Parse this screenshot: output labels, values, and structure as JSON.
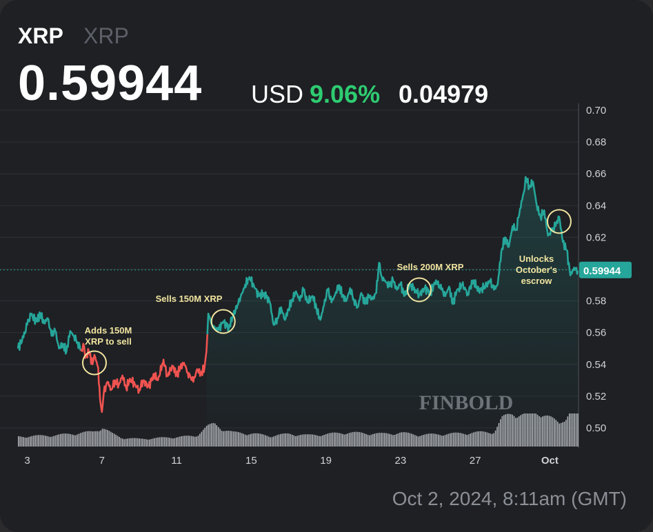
{
  "header": {
    "symbol": "XRP",
    "symbol_secondary": "XRP",
    "price": "0.59944",
    "currency": "USD",
    "change_pct": "9.06%",
    "change_abs": "0.04979"
  },
  "timestamp": "Oct 2, 2024, 8:11am (GMT)",
  "watermark": "FINBOLD",
  "last_price_label": "0.59944",
  "colors": {
    "up": "#26a69a",
    "down": "#ef5350",
    "pct_green": "#2ecc71",
    "background": "#1e2024",
    "annotation": "#f2e5a0"
  },
  "chart_data": {
    "type": "line",
    "ylim": [
      0.49,
      0.7
    ],
    "y_ticks": [
      "0.70",
      "0.68",
      "0.66",
      "0.64",
      "0.62",
      "0.60",
      "0.58",
      "0.56",
      "0.54",
      "0.52",
      "0.50"
    ],
    "x_ticks": [
      "3",
      "7",
      "11",
      "15",
      "19",
      "23",
      "27",
      "Oct"
    ],
    "x_tick_days": [
      3,
      7,
      11,
      15,
      19,
      23,
      27,
      31
    ],
    "xlim": [
      2.5,
      32.5
    ],
    "grid": true,
    "series": [
      {
        "points": [
          [
            2.5,
            0.55
          ],
          [
            2.8,
            0.557
          ],
          [
            3.0,
            0.565
          ],
          [
            3.2,
            0.571
          ],
          [
            3.5,
            0.567
          ],
          [
            3.7,
            0.572
          ],
          [
            3.9,
            0.566
          ],
          [
            4.1,
            0.569
          ],
          [
            4.3,
            0.558
          ],
          [
            4.5,
            0.561
          ],
          [
            4.7,
            0.55
          ],
          [
            4.9,
            0.553
          ],
          [
            5.1,
            0.548
          ],
          [
            5.3,
            0.561
          ],
          [
            5.5,
            0.558
          ],
          [
            5.7,
            0.554
          ],
          [
            5.9,
            0.549
          ],
          [
            6.0,
            0.553
          ],
          [
            6.1,
            0.544
          ],
          [
            6.3,
            0.548
          ],
          [
            6.5,
            0.54
          ],
          [
            6.6,
            0.546
          ],
          [
            6.8,
            0.538
          ],
          [
            6.9,
            0.518
          ],
          [
            7.0,
            0.51
          ],
          [
            7.1,
            0.522
          ],
          [
            7.3,
            0.529
          ],
          [
            7.5,
            0.524
          ],
          [
            7.7,
            0.53
          ],
          [
            7.9,
            0.527
          ],
          [
            8.1,
            0.533
          ],
          [
            8.3,
            0.525
          ],
          [
            8.5,
            0.531
          ],
          [
            8.8,
            0.527
          ],
          [
            9.0,
            0.524
          ],
          [
            9.2,
            0.53
          ],
          [
            9.5,
            0.526
          ],
          [
            9.8,
            0.534
          ],
          [
            10.0,
            0.53
          ],
          [
            10.3,
            0.543
          ],
          [
            10.5,
            0.533
          ],
          [
            10.8,
            0.539
          ],
          [
            11.0,
            0.533
          ],
          [
            11.2,
            0.538
          ],
          [
            11.4,
            0.541
          ],
          [
            11.6,
            0.535
          ],
          [
            11.9,
            0.529
          ],
          [
            12.1,
            0.537
          ],
          [
            12.3,
            0.534
          ],
          [
            12.5,
            0.538
          ],
          [
            12.6,
            0.548
          ],
          [
            12.7,
            0.572
          ],
          [
            12.9,
            0.565
          ],
          [
            13.2,
            0.561
          ],
          [
            13.5,
            0.567
          ],
          [
            13.8,
            0.563
          ],
          [
            14.0,
            0.57
          ],
          [
            14.3,
            0.578
          ],
          [
            14.6,
            0.588
          ],
          [
            14.9,
            0.595
          ],
          [
            15.1,
            0.591
          ],
          [
            15.4,
            0.583
          ],
          [
            15.7,
            0.585
          ],
          [
            16.0,
            0.579
          ],
          [
            16.2,
            0.565
          ],
          [
            16.4,
            0.569
          ],
          [
            16.6,
            0.576
          ],
          [
            16.8,
            0.568
          ],
          [
            17.0,
            0.575
          ],
          [
            17.2,
            0.581
          ],
          [
            17.4,
            0.586
          ],
          [
            17.6,
            0.58
          ],
          [
            17.8,
            0.587
          ],
          [
            18.0,
            0.579
          ],
          [
            18.3,
            0.583
          ],
          [
            18.5,
            0.575
          ],
          [
            18.7,
            0.568
          ],
          [
            18.9,
            0.577
          ],
          [
            19.1,
            0.587
          ],
          [
            19.3,
            0.579
          ],
          [
            19.5,
            0.584
          ],
          [
            19.7,
            0.59
          ],
          [
            19.9,
            0.583
          ],
          [
            20.1,
            0.58
          ],
          [
            20.3,
            0.588
          ],
          [
            20.5,
            0.581
          ],
          [
            20.7,
            0.576
          ],
          [
            20.9,
            0.585
          ],
          [
            21.1,
            0.578
          ],
          [
            21.3,
            0.583
          ],
          [
            21.5,
            0.581
          ],
          [
            21.7,
            0.585
          ],
          [
            21.85,
            0.604
          ],
          [
            22.0,
            0.595
          ],
          [
            22.2,
            0.592
          ],
          [
            22.4,
            0.589
          ],
          [
            22.6,
            0.593
          ],
          [
            22.8,
            0.587
          ],
          [
            23.0,
            0.591
          ],
          [
            23.2,
            0.583
          ],
          [
            23.5,
            0.59
          ],
          [
            23.8,
            0.587
          ],
          [
            24.0,
            0.584
          ],
          [
            24.3,
            0.588
          ],
          [
            24.6,
            0.585
          ],
          [
            24.9,
            0.593
          ],
          [
            25.2,
            0.587
          ],
          [
            25.4,
            0.583
          ],
          [
            25.6,
            0.589
          ],
          [
            25.8,
            0.578
          ],
          [
            26.0,
            0.586
          ],
          [
            26.3,
            0.59
          ],
          [
            26.6,
            0.585
          ],
          [
            26.9,
            0.593
          ],
          [
            27.2,
            0.586
          ],
          [
            27.5,
            0.589
          ],
          [
            27.8,
            0.592
          ],
          [
            28.0,
            0.587
          ],
          [
            28.2,
            0.59
          ],
          [
            28.4,
            0.611
          ],
          [
            28.6,
            0.62
          ],
          [
            28.8,
            0.614
          ],
          [
            29.0,
            0.627
          ],
          [
            29.2,
            0.625
          ],
          [
            29.4,
            0.638
          ],
          [
            29.6,
            0.648
          ],
          [
            29.7,
            0.658
          ],
          [
            29.9,
            0.652
          ],
          [
            30.1,
            0.655
          ],
          [
            30.3,
            0.64
          ],
          [
            30.5,
            0.633
          ],
          [
            30.7,
            0.637
          ],
          [
            30.9,
            0.621
          ],
          [
            31.1,
            0.624
          ],
          [
            31.3,
            0.627
          ],
          [
            31.5,
            0.633
          ],
          [
            31.7,
            0.617
          ],
          [
            31.9,
            0.612
          ],
          [
            32.1,
            0.596
          ],
          [
            32.3,
            0.601
          ],
          [
            32.5,
            0.599
          ]
        ]
      }
    ],
    "volume": {
      "ylim": [
        0,
        1
      ],
      "points": [
        [
          2.5,
          0.29
        ],
        [
          3.5,
          0.31
        ],
        [
          4.5,
          0.33
        ],
        [
          5.5,
          0.38
        ],
        [
          6.5,
          0.43
        ],
        [
          7.0,
          0.56
        ],
        [
          7.5,
          0.38
        ],
        [
          8.0,
          0.26
        ],
        [
          9.0,
          0.22
        ],
        [
          10.0,
          0.25
        ],
        [
          11.0,
          0.28
        ],
        [
          12.0,
          0.31
        ],
        [
          12.6,
          0.58
        ],
        [
          13.0,
          0.66
        ],
        [
          13.5,
          0.5
        ],
        [
          14.0,
          0.41
        ],
        [
          15.0,
          0.38
        ],
        [
          16.0,
          0.31
        ],
        [
          17.0,
          0.37
        ],
        [
          18.0,
          0.33
        ],
        [
          19.0,
          0.36
        ],
        [
          20.0,
          0.41
        ],
        [
          21.0,
          0.39
        ],
        [
          22.0,
          0.37
        ],
        [
          23.0,
          0.4
        ],
        [
          24.0,
          0.34
        ],
        [
          25.0,
          0.36
        ],
        [
          26.0,
          0.38
        ],
        [
          27.0,
          0.41
        ],
        [
          28.0,
          0.43
        ],
        [
          28.4,
          0.82
        ],
        [
          29.0,
          0.98
        ],
        [
          29.5,
          0.93
        ],
        [
          30.0,
          0.96
        ],
        [
          30.5,
          1.0
        ],
        [
          31.0,
          0.83
        ],
        [
          31.5,
          0.66
        ],
        [
          32.0,
          1.0
        ],
        [
          32.5,
          0.97
        ]
      ]
    },
    "annotations": [
      {
        "text": [
          "Adds 150M",
          "XRP to sell"
        ],
        "x": 6.6,
        "y": 0.541
      },
      {
        "text": [
          "Sells 150M XRP"
        ],
        "x": 13.5,
        "y": 0.567
      },
      {
        "text": [
          "Sells 200M XRP"
        ],
        "x": 24.0,
        "y": 0.587
      },
      {
        "text": [
          "Unlocks",
          "October's",
          "escrow"
        ],
        "x": 31.5,
        "y": 0.63
      }
    ]
  }
}
